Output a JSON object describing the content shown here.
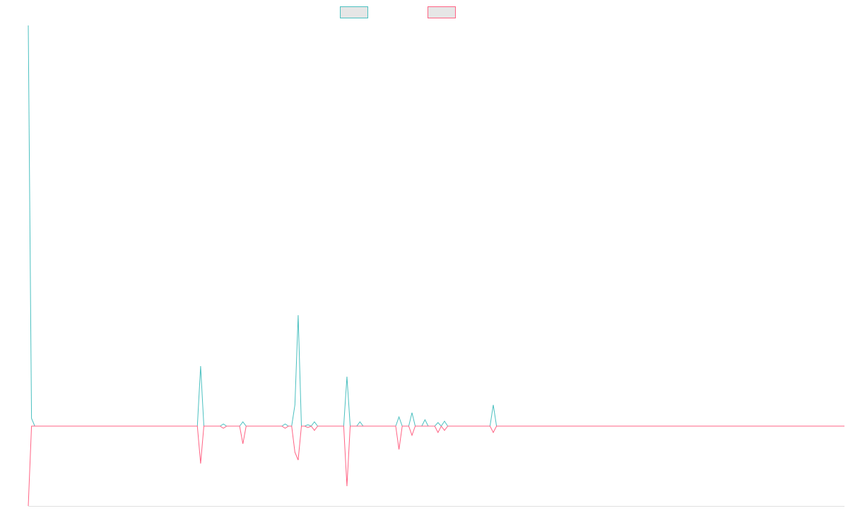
{
  "chart_data": {
    "type": "line",
    "x": [
      0,
      1,
      2,
      52,
      53,
      54,
      59,
      60,
      61,
      65,
      66,
      67,
      78,
      79,
      80,
      81,
      82,
      83,
      84,
      85,
      86,
      87,
      88,
      89,
      97,
      98,
      99,
      101,
      102,
      103,
      113,
      114,
      115,
      117,
      118,
      119,
      121,
      122,
      123,
      125,
      126,
      127,
      128,
      129,
      142,
      143,
      144,
      251
    ],
    "series": [
      {
        "color": "#4bc0c0",
        "values": [
          567,
          11,
          0,
          0,
          85,
          0,
          0,
          3,
          0,
          0,
          6,
          0,
          0,
          3,
          0,
          0,
          30,
          157,
          0,
          0,
          2,
          0,
          6,
          0,
          0,
          70,
          0,
          0,
          6,
          0,
          0,
          13,
          0,
          0,
          19,
          0,
          0,
          9,
          0,
          0,
          5,
          0,
          7,
          0,
          0,
          30,
          0,
          0
        ]
      },
      {
        "color": "#ff6384",
        "values": [
          -113,
          0,
          0,
          0,
          -53,
          0,
          0,
          -3,
          0,
          0,
          -25,
          0,
          0,
          -3,
          0,
          0,
          -37,
          -48,
          0,
          0,
          -2,
          0,
          -6,
          0,
          0,
          -85,
          0,
          0,
          0,
          0,
          0,
          -33,
          0,
          0,
          -13,
          0,
          0,
          0,
          0,
          0,
          -9,
          0,
          -6,
          0,
          0,
          -9,
          0,
          0
        ]
      }
    ],
    "xlim": [
      0,
      251
    ],
    "ylim": [
      -113,
      567
    ]
  }
}
